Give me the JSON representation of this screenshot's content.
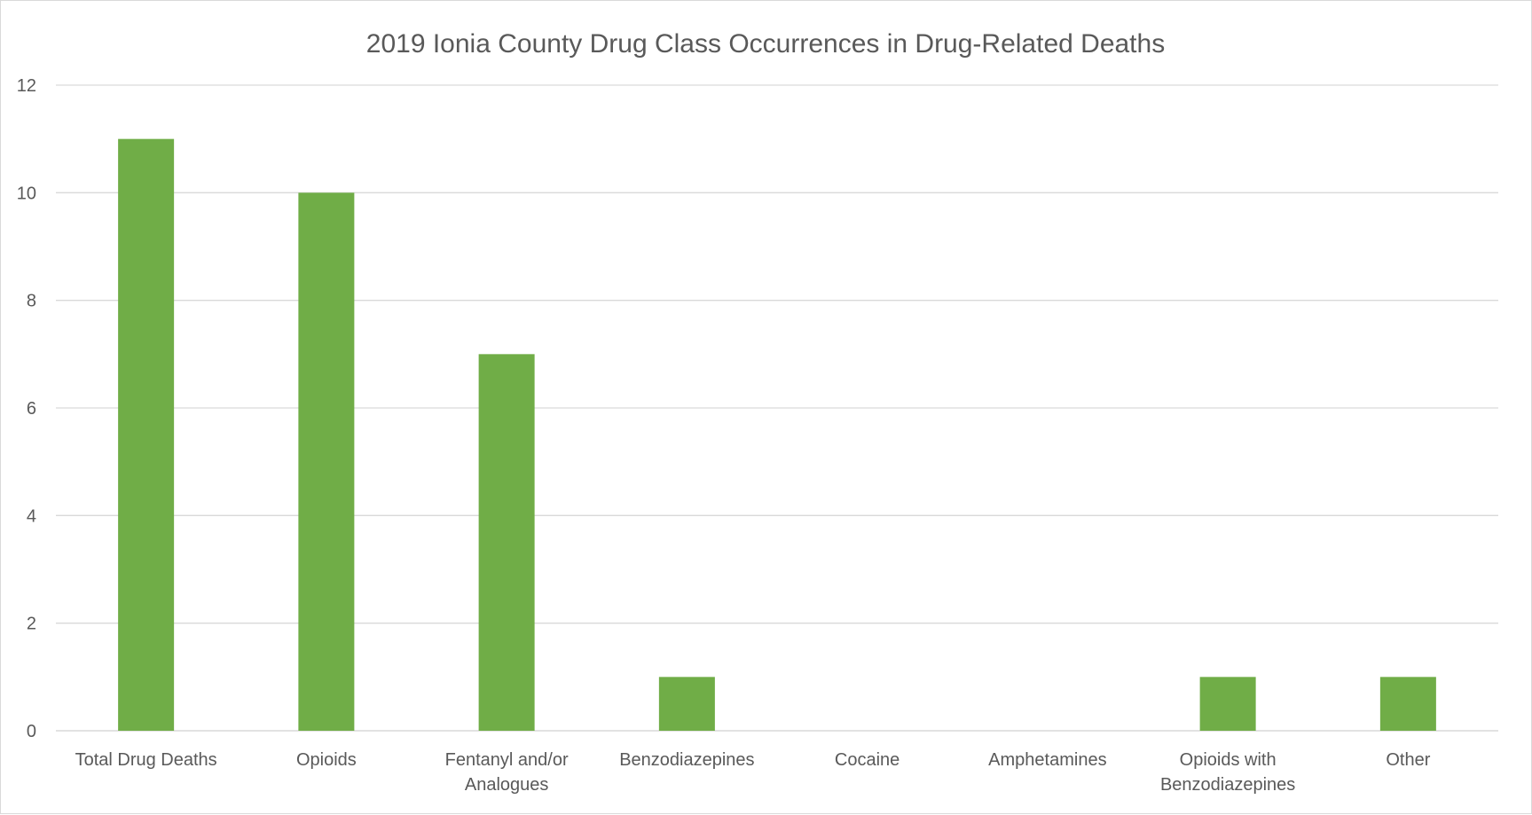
{
  "chart_data": {
    "type": "bar",
    "title": "2019 Ionia County Drug Class Occurrences in Drug-Related Deaths",
    "xlabel": "",
    "ylabel": "",
    "categories": [
      [
        "Total Drug Deaths"
      ],
      [
        "Opioids"
      ],
      [
        "Fentanyl and/or",
        "Analogues"
      ],
      [
        "Benzodiazepines"
      ],
      [
        "Cocaine"
      ],
      [
        "Amphetamines"
      ],
      [
        "Opioids with",
        "Benzodiazepines"
      ],
      [
        "Other"
      ]
    ],
    "values": [
      11,
      10,
      7,
      1,
      0,
      0,
      1,
      1
    ],
    "ylim": [
      0,
      12
    ],
    "yticks": [
      0,
      2,
      4,
      6,
      8,
      10,
      12
    ],
    "grid": true,
    "legend": "none",
    "bar_color": "#70ad47",
    "grid_color": "#d9d9d9",
    "text_color": "#595959"
  }
}
